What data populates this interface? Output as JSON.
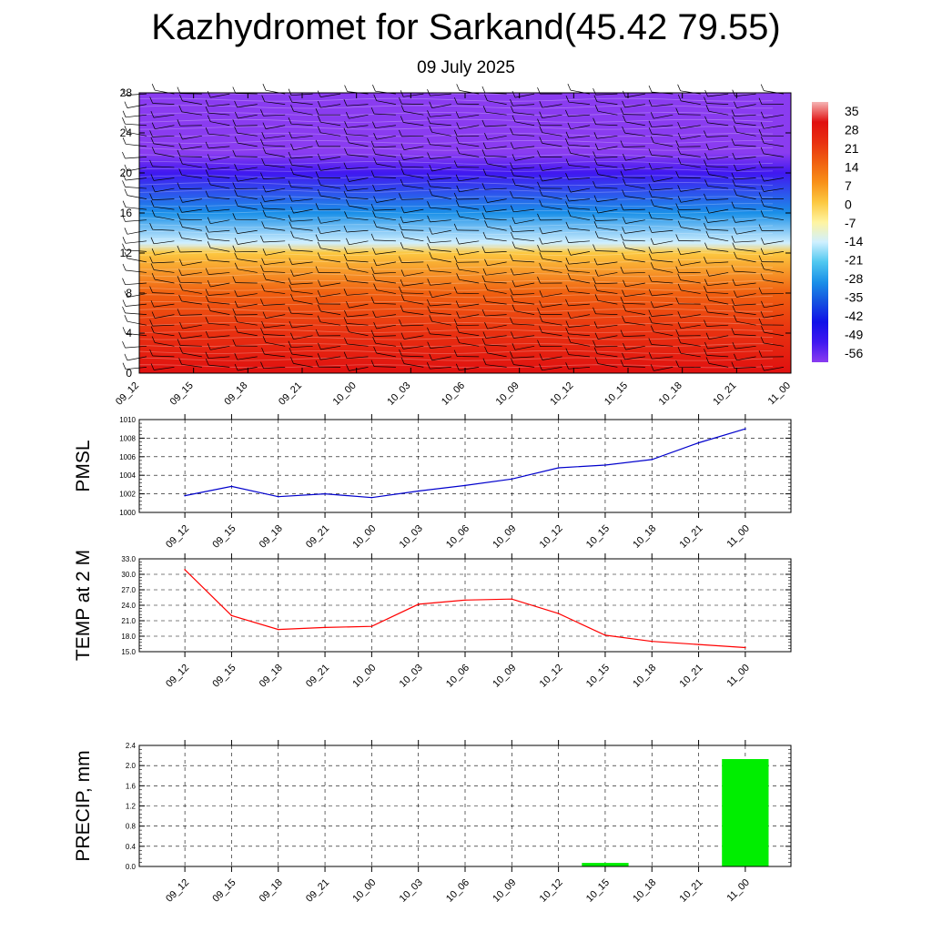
{
  "title": "Kazhydromet for Sarkand(45.42 79.55)",
  "subtitle": "09 July 2025",
  "time_labels": [
    "09_12",
    "09_15",
    "09_18",
    "09_21",
    "10_00",
    "10_03",
    "10_06",
    "10_09",
    "10_12",
    "10_15",
    "10_18",
    "10_21",
    "11_00"
  ],
  "chart_data": [
    {
      "type": "heatmap",
      "title": "",
      "xlabel": "",
      "ylabel": "",
      "x": [
        "09_12",
        "09_15",
        "09_18",
        "09_21",
        "10_00",
        "10_03",
        "10_06",
        "10_09",
        "10_12",
        "10_15",
        "10_18",
        "10_21",
        "11_00"
      ],
      "ylim": [
        0,
        28
      ],
      "yticks": [
        "0",
        "4",
        "8",
        "12",
        "16",
        "20",
        "24",
        "28"
      ],
      "colorbar": {
        "labels": [
          "35",
          "28",
          "21",
          "14",
          "7",
          "0",
          "-7",
          "-14",
          "-21",
          "-28",
          "-35",
          "-42",
          "-49",
          "-56"
        ],
        "colors": [
          "#f5b4b4",
          "#e01010",
          "#e83010",
          "#f06010",
          "#f89018",
          "#fcc840",
          "#fff4a0",
          "#d0f0ff",
          "#50c8f0",
          "#1a90e8",
          "#1450e0",
          "#1010e8",
          "#4018f0",
          "#8a3cf0"
        ]
      },
      "temperature_profile": [
        {
          "level": 0,
          "value": 31
        },
        {
          "level": 4,
          "value": 22
        },
        {
          "level": 8,
          "value": 12
        },
        {
          "level": 12,
          "value": 0
        },
        {
          "level": 13,
          "value": -16
        },
        {
          "level": 16,
          "value": -30
        },
        {
          "level": 20,
          "value": -50
        },
        {
          "level": 22,
          "value": -58
        },
        {
          "level": 28,
          "value": -56
        }
      ],
      "wind_barbs": true,
      "grid": false
    },
    {
      "type": "line",
      "title": "",
      "xlabel": "",
      "ylabel": "PMSL",
      "x": [
        "09_12",
        "09_15",
        "09_18",
        "09_21",
        "10_00",
        "10_03",
        "10_06",
        "10_09",
        "10_12",
        "10_15",
        "10_18",
        "10_21",
        "11_00"
      ],
      "series": [
        {
          "values": [
            1001.8,
            1002.8,
            1001.7,
            1002.0,
            1001.6,
            1002.3,
            1002.9,
            1003.6,
            1004.8,
            1005.1,
            1005.7,
            1007.5,
            1009.0
          ],
          "color": "#0000cc"
        }
      ],
      "ylim": [
        1000,
        1010
      ],
      "yticks": [
        "1000",
        "1002",
        "1004",
        "1006",
        "1008",
        "1010"
      ],
      "grid": true
    },
    {
      "type": "line",
      "title": "",
      "xlabel": "",
      "ylabel": "TEMP at 2 M",
      "x": [
        "09_12",
        "09_15",
        "09_18",
        "09_21",
        "10_00",
        "10_03",
        "10_06",
        "10_09",
        "10_12",
        "10_15",
        "10_18",
        "10_21",
        "11_00"
      ],
      "series": [
        {
          "values": [
            30.9,
            22.0,
            19.3,
            19.7,
            19.9,
            24.2,
            25.0,
            25.2,
            22.4,
            18.2,
            17.0,
            16.4,
            15.8
          ],
          "color": "#ff0000"
        }
      ],
      "ylim": [
        15,
        33
      ],
      "yticks": [
        "15.0",
        "18.0",
        "21.0",
        "24.0",
        "27.0",
        "30.0",
        "33.0"
      ],
      "grid": true
    },
    {
      "type": "bar",
      "title": "",
      "xlabel": "",
      "ylabel": "PRECIP, mm",
      "categories": [
        "09_12",
        "09_15",
        "09_18",
        "09_21",
        "10_00",
        "10_03",
        "10_06",
        "10_09",
        "10_12",
        "10_15",
        "10_18",
        "10_21",
        "11_00"
      ],
      "values": [
        0,
        0,
        0,
        0,
        0,
        0,
        0,
        0,
        0,
        0.07,
        0,
        0,
        2.13
      ],
      "color": "#00ee00",
      "ylim": [
        0,
        2.4
      ],
      "yticks": [
        "0.0",
        "0.4",
        "0.8",
        "1.2",
        "1.6",
        "2.0",
        "2.4"
      ],
      "grid": true
    }
  ]
}
